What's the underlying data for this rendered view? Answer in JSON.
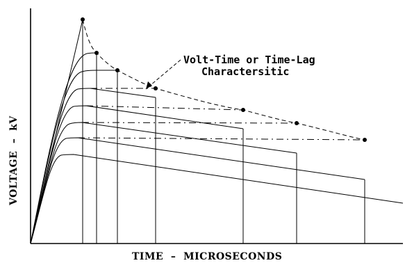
{
  "diagram": {
    "annotation": {
      "line1": "Volt-Time or Time-Lag",
      "line2": "Charactersitic"
    },
    "x_axis_label": "TIME  –  MICROSECONDS",
    "y_axis_label": "VOLTAGE  –  kV"
  },
  "colors": {
    "background": "#ffffff",
    "ink": "#000000"
  }
}
